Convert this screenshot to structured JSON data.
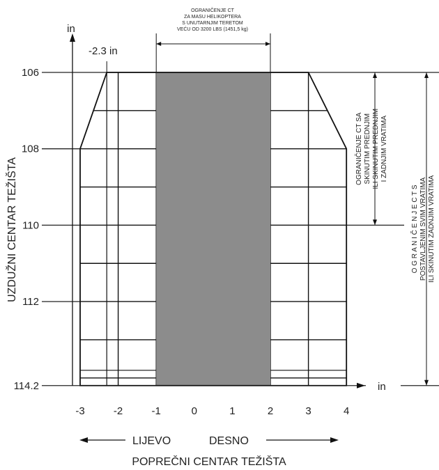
{
  "chart_data": {
    "type": "envelope",
    "x_axis": {
      "title": "POPREČNI CENTAR TEŽIŠTA",
      "unit": "in",
      "ticks": [
        -3,
        -2,
        -1,
        0,
        1,
        2,
        3,
        4
      ],
      "tick_labels": [
        "-3",
        "-2",
        "-1",
        "0",
        "1",
        "2",
        "3",
        "4"
      ],
      "range": [
        -3,
        4
      ],
      "direction_left": "LIJEVO",
      "direction_right": "DESNO"
    },
    "y_axis": {
      "title": "UZDUŽNI CENTAR TEŽIŠTA",
      "unit": "in",
      "ticks": [
        106,
        108,
        110,
        112,
        114.2
      ],
      "tick_labels": [
        "106",
        "108",
        "110",
        "112",
        "114.2"
      ],
      "range": [
        106,
        114.2
      ],
      "inverted": true
    },
    "envelope": [
      {
        "x": -2.3,
        "y": 106
      },
      {
        "x": 3,
        "y": 106
      },
      {
        "x": 4,
        "y": 108
      },
      {
        "x": 4,
        "y": 114.2
      },
      {
        "x": -3,
        "y": 114.2
      },
      {
        "x": -3,
        "y": 108
      }
    ],
    "shaded_region": {
      "x": [
        -1,
        2
      ],
      "y": [
        106,
        114.2
      ]
    },
    "annotations": {
      "left_limit": "-2.3 in",
      "top_box_lines": [
        "OGRANIČENJE CT",
        "ZA MASU HELIKOPTERA",
        "S UNUTARNJIM TERETOM",
        "VEĆU OD 3200 LBS (1451,5 kg)"
      ],
      "right_inner_lines": [
        "OGRANIČENJE  CT  SA",
        "SKINUTIM  PREDNJIM",
        "ILI SKINUTIM PREDNJIM",
        "I  ZADNJIM  VRATIMA"
      ],
      "right_outer_lines": [
        "O G R A N I Č E N J E   C T   S",
        "POSTAVLJENIM  SVIM  VRATIMA",
        "ILI SKINUTIM ZADNJIM VRATIMA"
      ]
    }
  }
}
